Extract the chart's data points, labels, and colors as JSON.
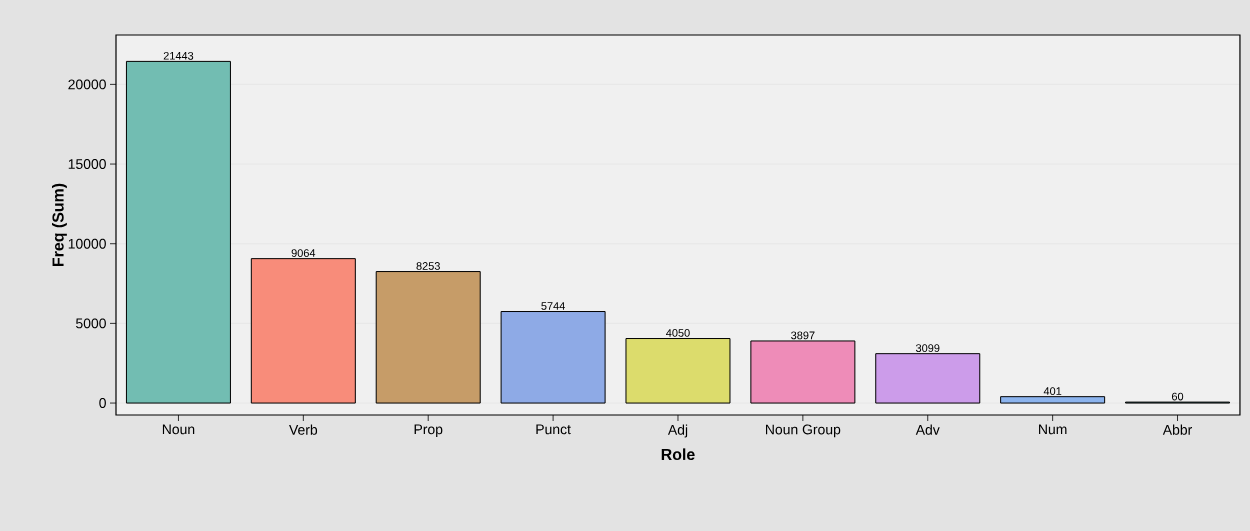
{
  "chart_data": {
    "type": "bar",
    "xlabel": "Role",
    "ylabel": "Freq (Sum)",
    "categories": [
      "Noun",
      "Verb",
      "Prop",
      "Punct",
      "Adj",
      "Noun Group",
      "Adv",
      "Num",
      "Abbr"
    ],
    "values": [
      21443,
      9064,
      8253,
      5744,
      4050,
      3897,
      3099,
      401,
      60
    ],
    "colors": [
      "#72bdb2",
      "#f88c7a",
      "#c69c68",
      "#8eaae6",
      "#dcdc6c",
      "#ee8cb8",
      "#cc9cea",
      "#8cb4ee",
      "#4f7f7a"
    ],
    "ylim": [
      -750,
      23100
    ],
    "yticks": [
      0,
      5000,
      10000,
      15000,
      20000
    ],
    "grid": "y",
    "data_labels": true
  }
}
